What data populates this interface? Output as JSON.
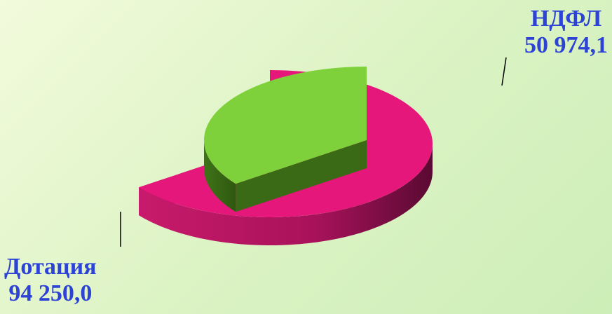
{
  "chart_data": {
    "type": "pie",
    "slices": [
      {
        "label": "Дотация",
        "value_text": "94 250,0",
        "value": 94250.0,
        "color": "#e6177a",
        "side_color": "#b3125f"
      },
      {
        "label": "НДФЛ",
        "value_text": "50 974,1",
        "value": 50974.1,
        "color": "#7ed13a",
        "side_color": "#3a6a16"
      }
    ],
    "style": "3d-exploded",
    "legend": "none"
  }
}
